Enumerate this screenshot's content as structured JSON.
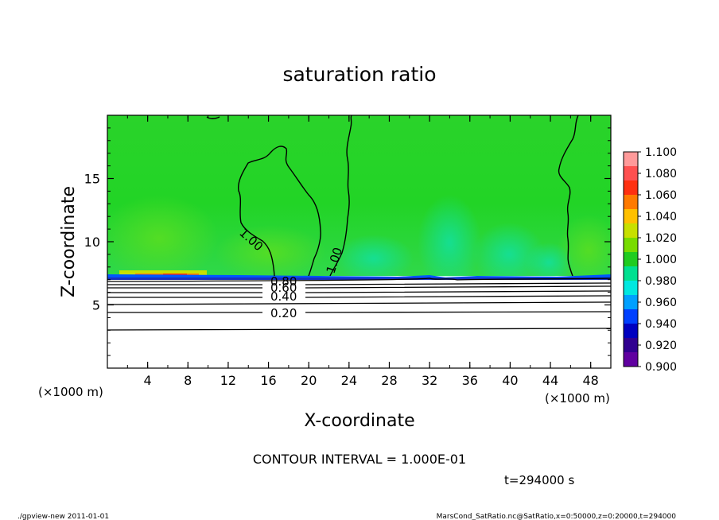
{
  "chart_data": {
    "type": "heatmap",
    "title": "saturation ratio",
    "xlabel": "X-coordinate",
    "ylabel": "Z-coordinate",
    "x_unit_label": "(×1000 m)",
    "y_unit_label": "(×1000 m)",
    "xlim": [
      0,
      50
    ],
    "ylim": [
      0,
      20
    ],
    "x_ticks": [
      4,
      8,
      12,
      16,
      20,
      24,
      28,
      32,
      36,
      40,
      44,
      48
    ],
    "y_ticks": [
      5,
      10,
      15
    ],
    "colorbar": {
      "levels": [
        1.1,
        1.08,
        1.06,
        1.04,
        1.02,
        1.0,
        0.98,
        0.96,
        0.94,
        0.92,
        0.9
      ],
      "labels": [
        "1.100",
        "1.080",
        "1.060",
        "1.040",
        "1.020",
        "1.000",
        "0.980",
        "0.960",
        "0.940",
        "0.920",
        "0.900"
      ],
      "colors": [
        "#ff9a9a",
        "#ff5050",
        "#ff3010",
        "#ff7a00",
        "#ffc000",
        "#c8e000",
        "#78dc00",
        "#20cc20",
        "#00e090",
        "#00e8e0",
        "#00a0ff",
        "#0040ff",
        "#0000c0",
        "#300090",
        "#6000a0"
      ]
    },
    "regions": [
      {
        "z_range": [
          0,
          7.2
        ],
        "value_range": [
          0.0,
          0.9
        ],
        "color": "#ffffff"
      },
      {
        "z_range": [
          7.2,
          7.5
        ],
        "value_range": [
          0.9,
          0.96
        ],
        "color": "#0050ff"
      },
      {
        "z_range": [
          7.5,
          20
        ],
        "value_range": [
          0.98,
          1.02
        ],
        "color": "#22d422"
      }
    ],
    "contours": [
      {
        "label": "0.20",
        "z": 4.4
      },
      {
        "label": "0.40",
        "z": 5.6
      },
      {
        "label": "0.60",
        "z": 6.2
      },
      {
        "label": "0.80",
        "z": 6.6
      },
      {
        "label": "1.00",
        "x": 16.5,
        "z": 10.2
      },
      {
        "label": "1.00",
        "x": 22.5,
        "z": 8.8
      }
    ],
    "contour_interval_text": "CONTOUR INTERVAL = 1.000E-01",
    "time_text": "t=294000 s",
    "footer_left": "./gpview-new   2011-01-01",
    "footer_right": "MarsCond_SatRatio.nc@SatRatio,x=0:50000,z=0:20000,t=294000"
  }
}
